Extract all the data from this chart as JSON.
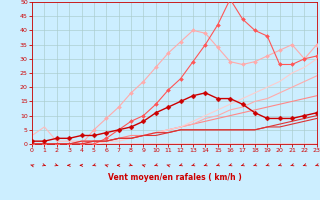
{
  "bg_color": "#cceeff",
  "grid_color": "#aacccc",
  "xlabel": "Vent moyen/en rafales ( km/h )",
  "xlabel_color": "#cc0000",
  "tick_color": "#cc0000",
  "xlim": [
    0,
    23
  ],
  "ylim": [
    0,
    50
  ],
  "yticks": [
    0,
    5,
    10,
    15,
    20,
    25,
    30,
    35,
    40,
    45,
    50
  ],
  "xticks": [
    0,
    1,
    2,
    3,
    4,
    5,
    6,
    7,
    8,
    9,
    10,
    11,
    12,
    13,
    14,
    15,
    16,
    17,
    18,
    19,
    20,
    21,
    22,
    23
  ],
  "lines": [
    {
      "x": [
        0,
        1,
        2,
        3,
        4,
        5,
        6,
        7,
        8,
        9,
        10,
        11,
        12,
        13,
        14,
        15,
        16,
        17,
        18,
        19,
        20,
        21,
        22,
        23
      ],
      "y": [
        3,
        6,
        1,
        1,
        1,
        1,
        0,
        0,
        0,
        0,
        0,
        0,
        0,
        0,
        0,
        0,
        0,
        0,
        0,
        0,
        0,
        0,
        0,
        0
      ],
      "color": "#ffbbbb",
      "linewidth": 0.8,
      "marker": null,
      "markersize": 0,
      "linestyle": "-",
      "zorder": 2
    },
    {
      "x": [
        0,
        1,
        2,
        3,
        4,
        5,
        6,
        7,
        8,
        9,
        10,
        11,
        12,
        13,
        14,
        15,
        16,
        17,
        18,
        19,
        20,
        21,
        22,
        23
      ],
      "y": [
        0,
        0,
        0,
        0,
        0,
        5,
        9,
        13,
        18,
        22,
        27,
        32,
        36,
        40,
        39,
        34,
        29,
        28,
        29,
        31,
        33,
        35,
        30,
        35
      ],
      "color": "#ffaaaa",
      "linewidth": 0.8,
      "marker": "D",
      "markersize": 2,
      "linestyle": "-",
      "zorder": 3
    },
    {
      "x": [
        0,
        1,
        2,
        3,
        4,
        5,
        6,
        7,
        8,
        9,
        10,
        11,
        12,
        13,
        14,
        15,
        16,
        17,
        18,
        19,
        20,
        21,
        22,
        23
      ],
      "y": [
        0,
        0,
        0,
        0,
        0,
        0,
        2,
        5,
        8,
        10,
        14,
        19,
        23,
        29,
        35,
        42,
        51,
        44,
        40,
        38,
        28,
        28,
        30,
        31
      ],
      "color": "#ff5555",
      "linewidth": 0.8,
      "marker": "D",
      "markersize": 2,
      "linestyle": "-",
      "zorder": 3
    },
    {
      "x": [
        0,
        1,
        2,
        3,
        4,
        5,
        6,
        7,
        8,
        9,
        10,
        11,
        12,
        13,
        14,
        15,
        16,
        17,
        18,
        19,
        20,
        21,
        22,
        23
      ],
      "y": [
        1,
        1,
        2,
        2,
        3,
        3,
        4,
        5,
        6,
        8,
        11,
        13,
        15,
        17,
        18,
        16,
        16,
        14,
        11,
        9,
        9,
        9,
        10,
        11
      ],
      "color": "#cc0000",
      "linewidth": 1.0,
      "marker": "D",
      "markersize": 2.5,
      "linestyle": "-",
      "zorder": 4
    },
    {
      "x": [
        0,
        1,
        2,
        3,
        4,
        5,
        6,
        7,
        8,
        9,
        10,
        11,
        12,
        13,
        14,
        15,
        16,
        17,
        18,
        19,
        20,
        21,
        22,
        23
      ],
      "y": [
        0,
        0,
        0,
        0,
        1,
        1,
        1,
        2,
        2,
        3,
        3,
        4,
        5,
        5,
        5,
        5,
        5,
        5,
        5,
        6,
        6,
        7,
        8,
        9
      ],
      "color": "#dd3333",
      "linewidth": 0.8,
      "marker": null,
      "markersize": 0,
      "linestyle": "-",
      "zorder": 3
    },
    {
      "x": [
        0,
        1,
        2,
        3,
        4,
        5,
        6,
        7,
        8,
        9,
        10,
        11,
        12,
        13,
        14,
        15,
        16,
        17,
        18,
        19,
        20,
        21,
        22,
        23
      ],
      "y": [
        0,
        0,
        0,
        0,
        0,
        1,
        1,
        2,
        2,
        3,
        4,
        4,
        5,
        5,
        5,
        5,
        5,
        5,
        5,
        6,
        7,
        8,
        9,
        10
      ],
      "color": "#dd3333",
      "linewidth": 0.8,
      "marker": null,
      "markersize": 0,
      "linestyle": "-",
      "zorder": 3
    },
    {
      "x": [
        0,
        1,
        2,
        3,
        4,
        5,
        6,
        7,
        8,
        9,
        10,
        11,
        12,
        13,
        14,
        15,
        16,
        17,
        18,
        19,
        20,
        21,
        22,
        23
      ],
      "y": [
        0,
        0,
        0,
        0,
        1,
        1,
        1,
        2,
        3,
        3,
        4,
        5,
        6,
        7,
        8,
        9,
        10,
        11,
        12,
        13,
        14,
        15,
        16,
        17
      ],
      "color": "#ff8888",
      "linewidth": 0.8,
      "marker": null,
      "markersize": 0,
      "linestyle": "-",
      "zorder": 2
    },
    {
      "x": [
        0,
        1,
        2,
        3,
        4,
        5,
        6,
        7,
        8,
        9,
        10,
        11,
        12,
        13,
        14,
        15,
        16,
        17,
        18,
        19,
        20,
        21,
        22,
        23
      ],
      "y": [
        0,
        0,
        0,
        0,
        0,
        1,
        1,
        2,
        2,
        3,
        4,
        5,
        6,
        7,
        9,
        10,
        12,
        13,
        15,
        16,
        18,
        20,
        22,
        24
      ],
      "color": "#ffaaaa",
      "linewidth": 0.8,
      "marker": null,
      "markersize": 0,
      "linestyle": "-",
      "zorder": 2
    },
    {
      "x": [
        0,
        1,
        2,
        3,
        4,
        5,
        6,
        7,
        8,
        9,
        10,
        11,
        12,
        13,
        14,
        15,
        16,
        17,
        18,
        19,
        20,
        21,
        22,
        23
      ],
      "y": [
        0,
        0,
        0,
        0,
        0,
        0,
        1,
        1,
        2,
        3,
        4,
        5,
        6,
        8,
        10,
        12,
        14,
        16,
        18,
        20,
        22,
        25,
        27,
        30
      ],
      "color": "#ffcccc",
      "linewidth": 0.8,
      "marker": null,
      "markersize": 0,
      "linestyle": "-",
      "zorder": 2
    }
  ],
  "wind_arrow_color": "#cc0000",
  "wind_arrow_angles": [
    225,
    45,
    45,
    270,
    270,
    315,
    225,
    270,
    45,
    225,
    315,
    225,
    315,
    315,
    315,
    315,
    315,
    315,
    315,
    315,
    315,
    315,
    315,
    315
  ]
}
